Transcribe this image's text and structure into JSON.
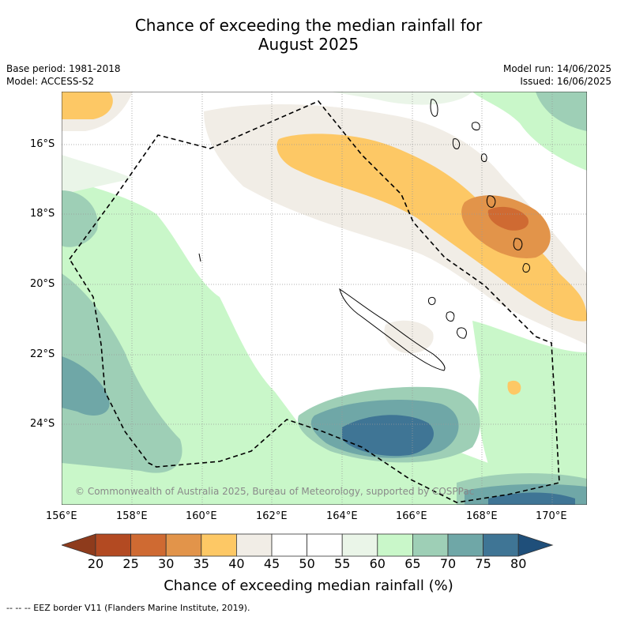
{
  "title_line1": "Chance of exceeding the median rainfall for",
  "title_line2": "August 2025",
  "meta_left": [
    "Base period: 1981-2018",
    "Model: ACCESS-S2"
  ],
  "meta_right": [
    "Model run: 14/06/2025",
    "Issued: 16/06/2025"
  ],
  "copyright": "© Commonwealth of Australia 2025, Bureau of Meteorology, supported by COSPPac",
  "lat_labels": [
    "16°S",
    "18°S",
    "20°S",
    "22°S",
    "24°S"
  ],
  "lon_labels": [
    "156°E",
    "158°E",
    "160°E",
    "162°E",
    "164°E",
    "166°E",
    "168°E",
    "170°E"
  ],
  "colorbar": {
    "labels": [
      "20",
      "25",
      "30",
      "35",
      "40",
      "45",
      "50",
      "55",
      "60",
      "65",
      "70",
      "75",
      "80"
    ],
    "colors": [
      "#b34a22",
      "#cf6a32",
      "#e2944a",
      "#fdc865",
      "#f1ede6",
      "#ffffff",
      "#ffffff",
      "#eaf5e8",
      "#c9f7c9",
      "#9ecfb6",
      "#6fa7a7",
      "#3f7595"
    ],
    "under_color": "#8e3b1c",
    "over_color": "#1f4f7a",
    "title": "Chance of exceeding median rainfall (%)"
  },
  "legend_footer": "--  --  -- EEZ border V11 (Flanders Marine Institute, 2019)."
}
